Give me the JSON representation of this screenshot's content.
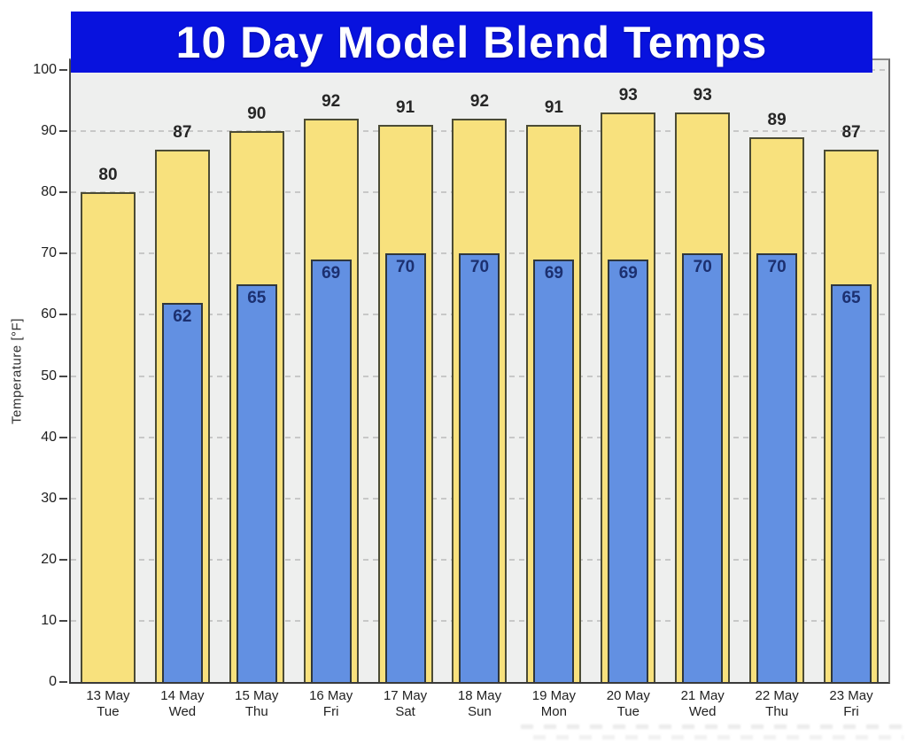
{
  "title": {
    "text": "10 Day Model Blend Temps",
    "banner_color": "#0812de",
    "text_color": "#ffffff"
  },
  "chart_data": {
    "type": "bar",
    "title": "10 Day Model Blend Temps",
    "xlabel": "",
    "ylabel": "Temperature [°F]",
    "ylim": [
      0,
      101.6
    ],
    "yticks": [
      0,
      10,
      20,
      30,
      40,
      50,
      60,
      70,
      80,
      90,
      100
    ],
    "grid": "horizontal-dashed",
    "legend_position": "none",
    "categories": [
      {
        "date": "13 May",
        "day": "Tue"
      },
      {
        "date": "14 May",
        "day": "Wed"
      },
      {
        "date": "15 May",
        "day": "Thu"
      },
      {
        "date": "16 May",
        "day": "Fri"
      },
      {
        "date": "17 May",
        "day": "Sat"
      },
      {
        "date": "18 May",
        "day": "Sun"
      },
      {
        "date": "19 May",
        "day": "Mon"
      },
      {
        "date": "20 May",
        "day": "Tue"
      },
      {
        "date": "21 May",
        "day": "Wed"
      },
      {
        "date": "22 May",
        "day": "Thu"
      },
      {
        "date": "23 May",
        "day": "Fri"
      }
    ],
    "series": [
      {
        "name": "high-temp",
        "color": "#f8e17d",
        "border_color": "#4b4b35",
        "label_color": "#262626",
        "values": [
          80,
          87,
          90,
          92,
          91,
          92,
          91,
          93,
          93,
          89,
          87
        ]
      },
      {
        "name": "low-temp",
        "color": "#6290e2",
        "border_color": "#2f373d",
        "label_color": "#1c3070",
        "values": [
          null,
          62,
          65,
          69,
          70,
          70,
          69,
          69,
          70,
          70,
          65
        ]
      }
    ]
  }
}
